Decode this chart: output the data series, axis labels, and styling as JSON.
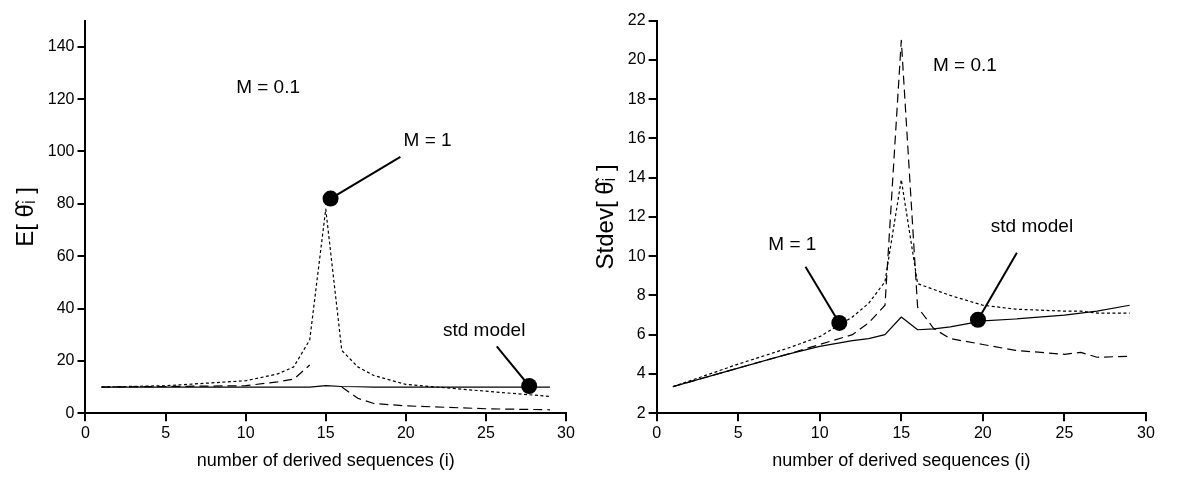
{
  "chart_data": [
    {
      "type": "line",
      "xlabel": "number of derived sequences (i)",
      "ylabel": "E[ θ̂ᵢ ]",
      "xlim": [
        0,
        30
      ],
      "xticks": [
        0,
        5,
        10,
        15,
        20,
        25,
        30
      ],
      "ylim": [
        0,
        150
      ],
      "yticks": [
        0,
        20,
        40,
        60,
        80,
        100,
        120,
        140
      ],
      "x": [
        1,
        5,
        10,
        12,
        13,
        14,
        15,
        16,
        17,
        18,
        20,
        25,
        29
      ],
      "series": [
        {
          "color": "#000000",
          "line_style": "dashed",
          "values": [
            10,
            10.2,
            10.5,
            12,
            13,
            18.4,
            null,
            10,
            5.7,
            3.7,
            2.8,
            1.7,
            1.3
          ]
        },
        {
          "color": "#000000",
          "line_style": "dotted",
          "values": [
            10,
            10.5,
            12.4,
            15,
            17.7,
            28,
            78,
            24,
            17.7,
            14.4,
            11,
            8.4,
            6.4
          ]
        },
        {
          "color": "#000000",
          "line_style": "solid",
          "values": [
            10,
            10,
            10,
            10,
            10,
            10,
            10.5,
            10.2,
            10.1,
            10,
            10,
            10,
            10
          ]
        }
      ],
      "annotations": [
        "M = 0.1",
        {
          "text": "M = 1",
          "x": 15.3,
          "y": 82
        },
        {
          "text": "std model",
          "x": 27.7,
          "y": 10.4
        }
      ]
    },
    {
      "type": "line",
      "xlabel": "number of derived sequences (i)",
      "ylabel": "Stdev[ θ̂ᵢ ]",
      "xlim": [
        0,
        30
      ],
      "xticks": [
        0,
        5,
        10,
        15,
        20,
        25,
        30
      ],
      "ylim": [
        2,
        22
      ],
      "yticks": [
        2,
        4,
        6,
        8,
        10,
        12,
        14,
        16,
        18,
        20,
        22
      ],
      "x": [
        1,
        5,
        8,
        10,
        12,
        13,
        14,
        15,
        16,
        17,
        18,
        20,
        22,
        25,
        26,
        27,
        29
      ],
      "series": [
        {
          "color": "#000000",
          "line_style": "dashed",
          "values": [
            3.35,
            4.3,
            5,
            5.5,
            6,
            6.6,
            7.5,
            21,
            7.4,
            6.3,
            5.8,
            5.5,
            5.2,
            5,
            5.1,
            4.85,
            4.9
          ]
        },
        {
          "color": "#000000",
          "line_style": "dotted",
          "values": [
            3.35,
            4.5,
            5.3,
            5.9,
            6.9,
            7.6,
            8.7,
            13.9,
            8.6,
            8.3,
            8,
            7.5,
            7.3,
            7.2,
            7.2,
            7.1,
            7.1
          ]
        },
        {
          "color": "#000000",
          "line_style": "solid",
          "values": [
            3.35,
            4.3,
            5,
            5.4,
            5.7,
            5.8,
            6,
            6.9,
            6.25,
            6.3,
            6.4,
            6.7,
            6.8,
            7,
            7.1,
            7.2,
            7.5
          ]
        }
      ],
      "annotations": [
        {
          "text": "M = 1",
          "x": 11.2,
          "y": 6.6
        },
        "M = 0.1",
        {
          "text": "std model",
          "x": 19.7,
          "y": 6.76
        }
      ]
    }
  ]
}
